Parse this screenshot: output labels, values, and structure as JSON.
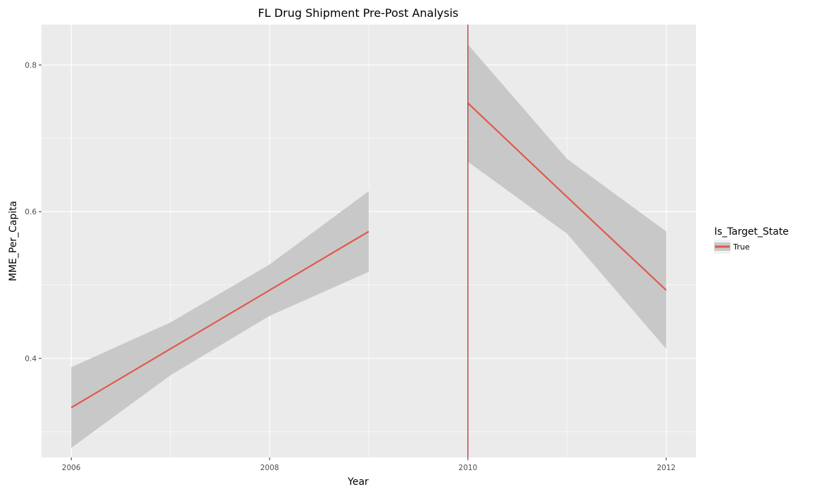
{
  "chart_data": {
    "type": "line",
    "title": "FL Drug Shipment Pre-Post Analysis",
    "xlabel": "Year",
    "ylabel": "MME_Per_Capita",
    "xlim": [
      2005.7,
      2012.3
    ],
    "ylim": [
      0.265,
      0.855
    ],
    "x_ticks": [
      2006,
      2008,
      2010,
      2012
    ],
    "x_tick_labels": [
      "2006",
      "2008",
      "2010",
      "2012"
    ],
    "x_minor_ticks": [
      2007,
      2009,
      2011
    ],
    "y_ticks": [
      0.4,
      0.6,
      0.8
    ],
    "y_tick_labels": [
      "0.4",
      "0.6",
      "0.8"
    ],
    "y_minor_ticks": [
      0.3,
      0.5,
      0.7
    ],
    "grid": true,
    "legend": {
      "title": "Is_Target_State",
      "placement": "right",
      "entries": [
        {
          "label": "True",
          "color": "#e0594b"
        }
      ]
    },
    "series": [
      {
        "name": "True",
        "segment": "pre",
        "color": "#e0594b",
        "x": [
          2006,
          2007,
          2008,
          2009
        ],
        "y": [
          0.333,
          0.413,
          0.493,
          0.573
        ],
        "ci_low": [
          0.278,
          0.377,
          0.458,
          0.518
        ],
        "ci_high": [
          0.388,
          0.449,
          0.528,
          0.628
        ]
      },
      {
        "name": "True",
        "segment": "post",
        "color": "#e0594b",
        "x": [
          2010,
          2011,
          2012
        ],
        "y": [
          0.748,
          0.62,
          0.493
        ],
        "ci_low": [
          0.668,
          0.57,
          0.413
        ],
        "ci_high": [
          0.828,
          0.672,
          0.573
        ]
      }
    ],
    "vline": {
      "x": 2010,
      "color": "#b22222"
    },
    "colors": {
      "panel_background": "#ebebeb",
      "grid": "#ffffff",
      "ribbon": "#c8c8c8",
      "line": "#e0594b",
      "vline": "#b22222"
    }
  }
}
